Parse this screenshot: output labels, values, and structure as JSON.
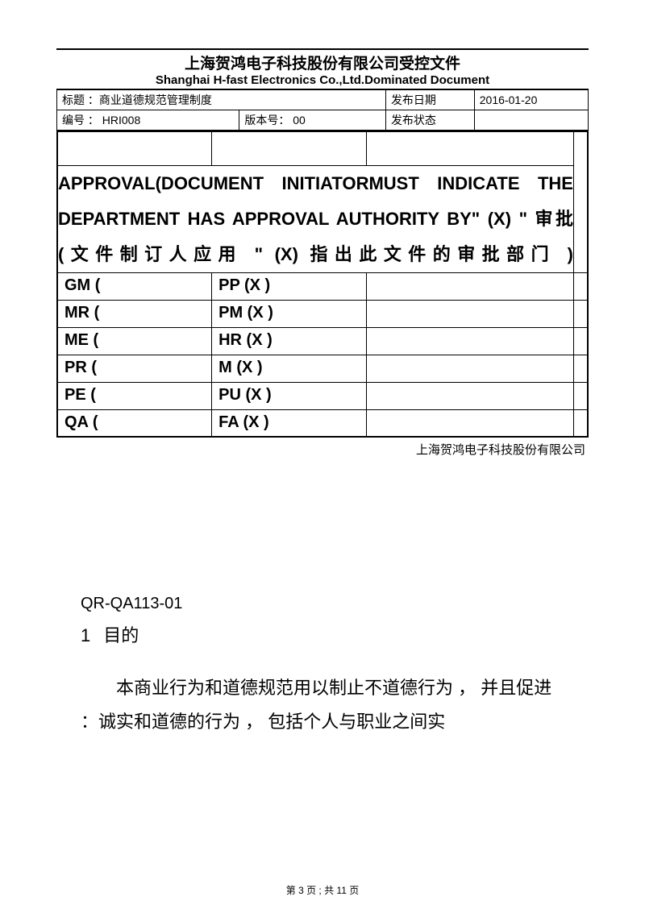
{
  "header": {
    "title_cn": "上海贺鸿电子科技股份有限公司受控文件",
    "title_en": "Shanghai H-fast Electronics Co.,Ltd.Dominated Document",
    "row1": {
      "title_label": "标题 ：商业道德规范管理制度",
      "date_label": "发布日期",
      "date_value": "2016-01-20"
    },
    "row2": {
      "code_label": "编号 ： HRI008",
      "version_label": "版本号： 00",
      "status_label": "发布状态"
    }
  },
  "approval": {
    "heading": "APPROVAL(DOCUMENT INITIATORMUST INDICATE THE DEPARTMENT HAS APPROVAL AUTHORITY BY\" (X) \" 审批 (文件制订人应用 \" (X) 指出此文件的审批部门 )",
    "rows": [
      {
        "c1": "GM   (",
        "c2": "PP   (X )"
      },
      {
        "c1": "MR   (",
        "c2": "PM   (X )"
      },
      {
        "c1": "ME   (",
        "c2": "HR   (X )"
      },
      {
        "c1": " PR   (",
        "c2": "  M   (X )"
      },
      {
        "c1": " PE   (",
        "c2": "PU   (X )"
      },
      {
        "c1": " QA    (",
        "c2": "FA   (X )"
      }
    ],
    "company": "上海贺鸿电子科技股份有限公司"
  },
  "body": {
    "qr": "QR-QA113-01",
    "section_num": "1",
    "section_title": "目的",
    "para": "本商业行为和道德规范用以制止不道德行为 ， 并且促进 ：诚实和道德的行为 ， 包括个人与职业之间实"
  },
  "footer": {
    "text": "第 3 页 ; 共 11 页"
  }
}
